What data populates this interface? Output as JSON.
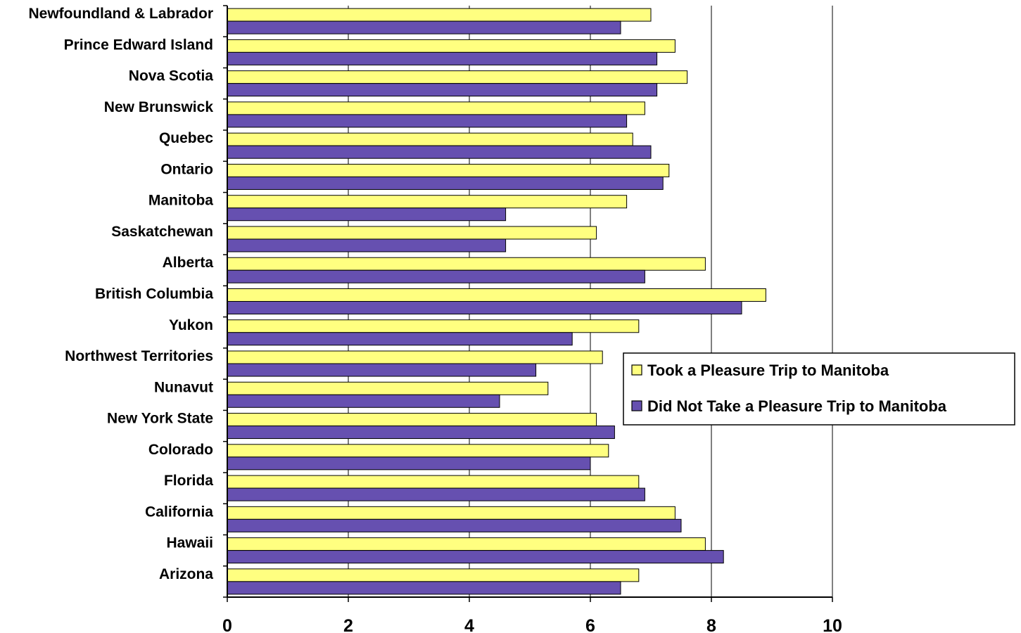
{
  "chart_data": {
    "type": "bar",
    "orientation": "horizontal",
    "categories": [
      "Newfoundland & Labrador",
      "Prince Edward Island",
      "Nova Scotia",
      "New Brunswick",
      "Quebec",
      "Ontario",
      "Manitoba",
      "Saskatchewan",
      "Alberta",
      "British Columbia",
      "Yukon",
      "Northwest Territories",
      "Nunavut",
      "New York State",
      "Colorado",
      "Florida",
      "California",
      "Hawaii",
      "Arizona"
    ],
    "series": [
      {
        "name": "Took a Pleasure Trip to Manitoba",
        "color": "#FFFF80",
        "values": [
          7.0,
          7.4,
          7.6,
          6.9,
          6.7,
          7.3,
          6.6,
          6.1,
          7.9,
          8.9,
          6.8,
          6.2,
          5.3,
          6.1,
          6.3,
          6.8,
          7.4,
          7.9,
          6.8
        ]
      },
      {
        "name": "Did Not Take a Pleasure Trip to Manitoba",
        "color": "#6650B0",
        "values": [
          6.5,
          7.1,
          7.1,
          6.6,
          7.0,
          7.2,
          4.6,
          4.6,
          6.9,
          8.5,
          5.7,
          5.1,
          4.5,
          6.4,
          6.0,
          6.9,
          7.5,
          8.2,
          6.5
        ]
      }
    ],
    "xlim": [
      0,
      10
    ],
    "xticks": [
      "0",
      "2",
      "4",
      "6",
      "8",
      "10"
    ],
    "grid": "vertical",
    "legend": "right",
    "title": "",
    "xlabel": "",
    "ylabel": ""
  }
}
